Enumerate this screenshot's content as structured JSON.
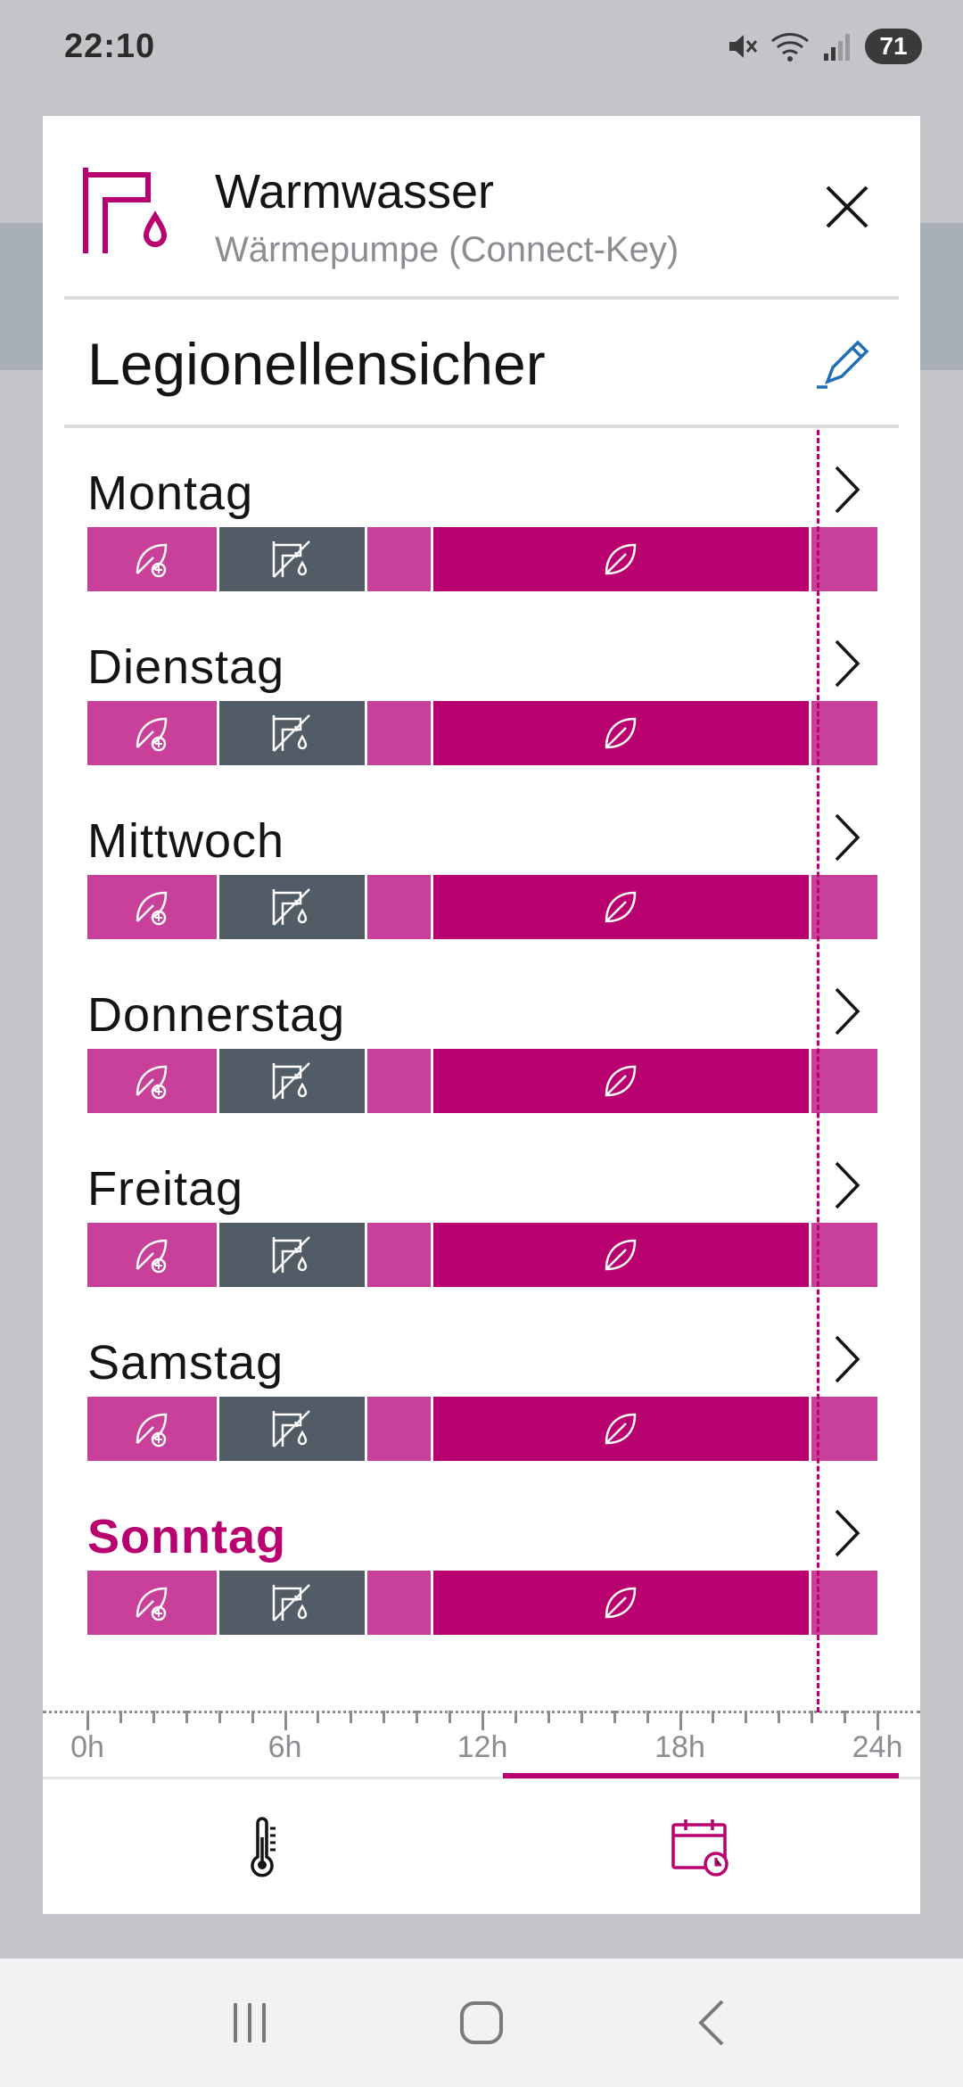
{
  "status_bar": {
    "time": "22:10",
    "battery": "71"
  },
  "header": {
    "title": "Warmwasser",
    "subtitle": "Wärmepumpe (Connect-Key)"
  },
  "program": {
    "name": "Legionellensicher"
  },
  "days": [
    {
      "label": "Montag",
      "active": false
    },
    {
      "label": "Dienstag",
      "active": false
    },
    {
      "label": "Mittwoch",
      "active": false
    },
    {
      "label": "Donnerstag",
      "active": false
    },
    {
      "label": "Freitag",
      "active": false
    },
    {
      "label": "Samstag",
      "active": false
    },
    {
      "label": "Sonntag",
      "active": true
    }
  ],
  "schedule": [
    {
      "mode": "eco-plus",
      "start_h": 0,
      "end_h": 4,
      "color": "#c9409a",
      "icon": "leaf-plus-icon"
    },
    {
      "mode": "legionella",
      "start_h": 4,
      "end_h": 8.5,
      "color": "#525c66",
      "icon": "faucet-off-icon"
    },
    {
      "mode": "comfort",
      "start_h": 8.5,
      "end_h": 10.5,
      "color": "#c9409a",
      "icon": ""
    },
    {
      "mode": "eco",
      "start_h": 10.5,
      "end_h": 22,
      "color": "#b8006f",
      "icon": "leaf-icon"
    },
    {
      "mode": "comfort",
      "start_h": 22,
      "end_h": 24,
      "color": "#c9409a",
      "icon": ""
    }
  ],
  "current_time_h": 22.17,
  "axis": {
    "labels": [
      "0h",
      "6h",
      "12h",
      "18h",
      "24h"
    ]
  },
  "colors": {
    "accent": "#b8006f",
    "segment_light": "#c9409a",
    "segment_dark": "#525c66"
  },
  "tabs": [
    {
      "name": "temperature",
      "icon": "thermometer-icon",
      "selected": false
    },
    {
      "name": "schedule",
      "icon": "calendar-clock-icon",
      "selected": true
    }
  ]
}
